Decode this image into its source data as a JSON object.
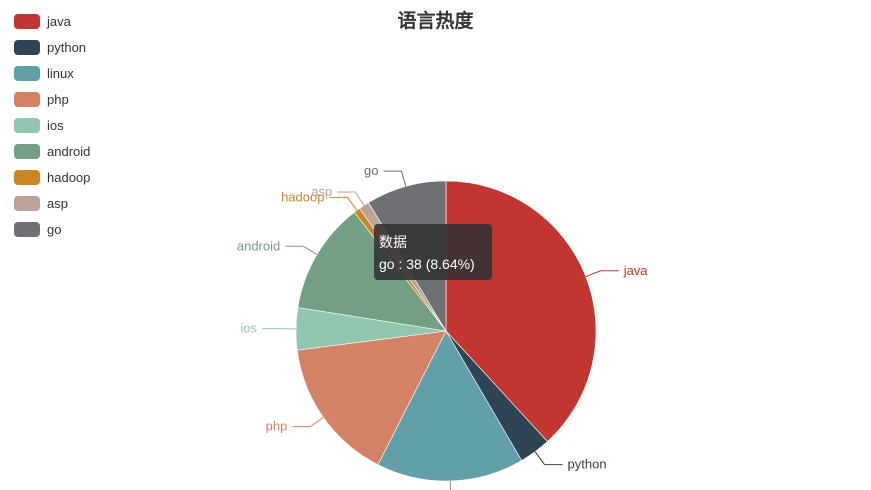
{
  "chart_data": {
    "type": "pie",
    "title": "语言热度",
    "legend_position": "top-left",
    "series_name": "数据",
    "slices": [
      {
        "name": "java",
        "value": 168,
        "color": "#c23531"
      },
      {
        "name": "python",
        "value": 15,
        "color": "#2f4554"
      },
      {
        "name": "linux",
        "value": 70,
        "color": "#61a0a8"
      },
      {
        "name": "php",
        "value": 68,
        "color": "#d48265"
      },
      {
        "name": "ios",
        "value": 20,
        "color": "#91c7ae"
      },
      {
        "name": "android",
        "value": 53,
        "color": "#749f83"
      },
      {
        "name": "hadoop",
        "value": 3,
        "color": "#ca8622"
      },
      {
        "name": "asp",
        "value": 5,
        "color": "#bda29a"
      },
      {
        "name": "go",
        "value": 38,
        "color": "#6e7074"
      }
    ]
  },
  "tooltip": {
    "series": "数据",
    "text": "go : 38 (8.64%)"
  }
}
